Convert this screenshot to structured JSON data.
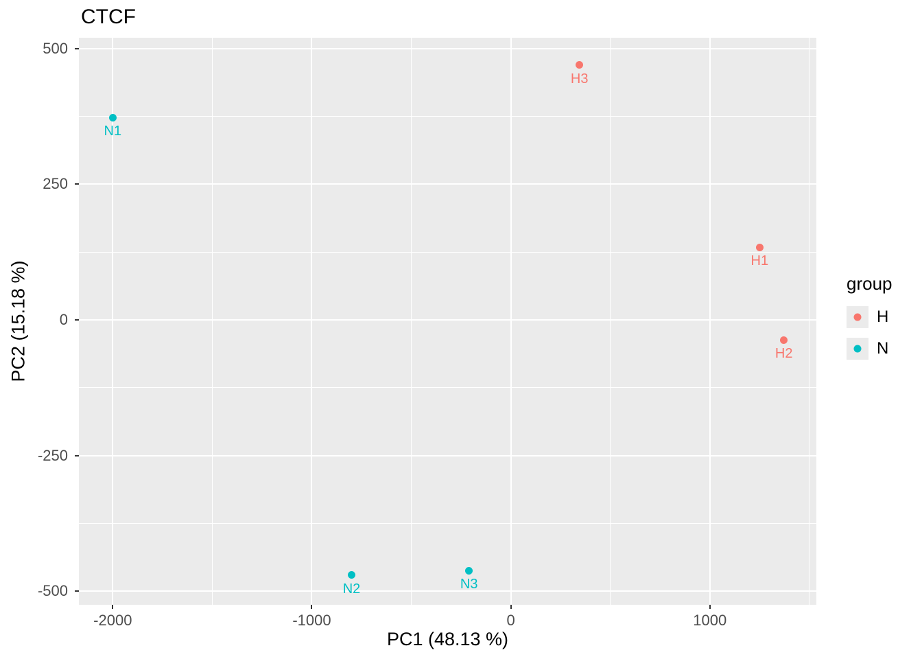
{
  "chart_data": {
    "type": "scatter",
    "title": "CTCF",
    "xlabel": "PC1 (48.13 %)",
    "ylabel": "PC2 (15.18 %)",
    "xlim": [
      -2170,
      1535
    ],
    "ylim": [
      -525,
      520
    ],
    "x_major_ticks": [
      -2000,
      -1000,
      0,
      1000
    ],
    "x_minor_ticks": [
      -1500,
      -500,
      500,
      1500
    ],
    "y_major_ticks": [
      500,
      250,
      0,
      -250,
      -500
    ],
    "y_minor_ticks": [
      375,
      125,
      -125,
      -375
    ],
    "grid": true,
    "panel_bg": "#EBEBEB",
    "grid_color": "#FFFFFF",
    "legend_title": "group",
    "legend_position": "right",
    "series": [
      {
        "name": "H",
        "color": "#F8766D",
        "points": [
          {
            "label": "H3",
            "x": 345,
            "y": 470
          },
          {
            "label": "H1",
            "x": 1250,
            "y": 134
          },
          {
            "label": "H2",
            "x": 1372,
            "y": -37
          }
        ]
      },
      {
        "name": "N",
        "color": "#00BFC4",
        "points": [
          {
            "label": "N1",
            "x": -2000,
            "y": 373
          },
          {
            "label": "N2",
            "x": -800,
            "y": -470
          },
          {
            "label": "N3",
            "x": -210,
            "y": -462
          }
        ]
      }
    ]
  }
}
